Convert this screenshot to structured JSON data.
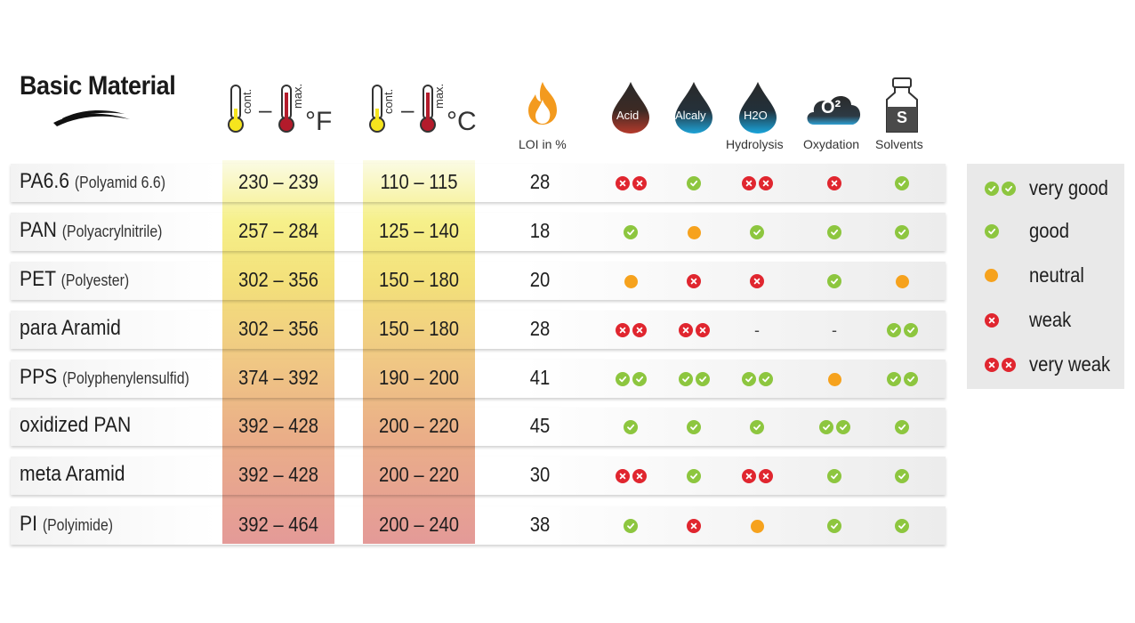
{
  "header": {
    "title": "Basic Material",
    "temp_f": {
      "cont_label": "cont.",
      "max_label": "max.",
      "dash": "–",
      "unit": "°F"
    },
    "temp_c": {
      "cont_label": "cont.",
      "max_label": "max.",
      "dash": "–",
      "unit": "°C"
    },
    "loi_label": "LOI in %",
    "acid_label": "Acid",
    "alcaly_label": "Alcaly",
    "h2o_label": "H2O",
    "hydrolysis_label": "Hydrolysis",
    "o2_label": "O²",
    "oxydation_label": "Oxydation",
    "solvents_icon_label": "S",
    "solvents_label": "Solvents"
  },
  "rows": [
    {
      "name": "PA6.6",
      "sub": "(Polyamid 6.6)",
      "f": "230 – 239",
      "c": "110 – 115",
      "loi": "28",
      "acid": "vw",
      "alcaly": "g",
      "hydrolysis": "vw",
      "oxydation": "w",
      "solvents": "g"
    },
    {
      "name": "PAN",
      "sub": "(Polyacrylnitrile)",
      "f": "257 – 284",
      "c": "125 – 140",
      "loi": "18",
      "acid": "g",
      "alcaly": "n",
      "hydrolysis": "g",
      "oxydation": "g",
      "solvents": "g"
    },
    {
      "name": "PET",
      "sub": "(Polyester)",
      "f": "302 – 356",
      "c": "150 – 180",
      "loi": "20",
      "acid": "n",
      "alcaly": "w",
      "hydrolysis": "w",
      "oxydation": "g",
      "solvents": "n"
    },
    {
      "name": "para Aramid",
      "sub": "",
      "f": "302 – 356",
      "c": "150 – 180",
      "loi": "28",
      "acid": "vw",
      "alcaly": "vw",
      "hydrolysis": "-",
      "oxydation": "-",
      "solvents": "vg"
    },
    {
      "name": "PPS",
      "sub": "(Polyphenylensulfid)",
      "f": "374 – 392",
      "c": "190 – 200",
      "loi": "41",
      "acid": "vg",
      "alcaly": "vg",
      "hydrolysis": "vg",
      "oxydation": "n",
      "solvents": "vg"
    },
    {
      "name": "oxidized PAN",
      "sub": "",
      "f": "392 – 428",
      "c": "200 – 220",
      "loi": "45",
      "acid": "g",
      "alcaly": "g",
      "hydrolysis": "g",
      "oxydation": "vg",
      "solvents": "g"
    },
    {
      "name": "meta Aramid",
      "sub": "",
      "f": "392 – 428",
      "c": "200 – 220",
      "loi": "30",
      "acid": "vw",
      "alcaly": "g",
      "hydrolysis": "vw",
      "oxydation": "g",
      "solvents": "g"
    },
    {
      "name": "PI",
      "sub": "(Polyimide)",
      "f": "392 – 464",
      "c": "200 – 240",
      "loi": "38",
      "acid": "g",
      "alcaly": "w",
      "hydrolysis": "n",
      "oxydation": "g",
      "solvents": "g"
    }
  ],
  "legend": [
    {
      "code": "vg",
      "label": "very good"
    },
    {
      "code": "g",
      "label": "good"
    },
    {
      "code": "n",
      "label": "neutral"
    },
    {
      "code": "w",
      "label": "weak"
    },
    {
      "code": "vw",
      "label": "very weak"
    }
  ],
  "colors": {
    "good": "#8dc63f",
    "weak": "#e0262f",
    "neutral": "#f6a21d"
  }
}
